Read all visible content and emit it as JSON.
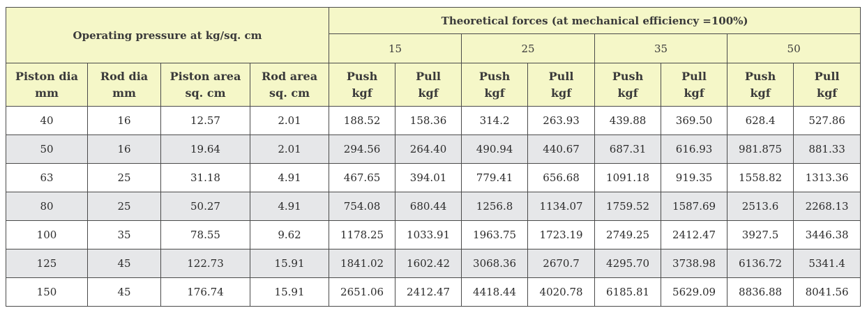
{
  "table": {
    "group_header": "Operating pressure at kg/sq. cm",
    "forces_header": "Theoretical forces (at mechanical efficiency =100%)",
    "pressures": [
      "15",
      "25",
      "35",
      "50"
    ],
    "columns": [
      [
        "Piston dia",
        "mm"
      ],
      [
        "Rod dia",
        "mm"
      ],
      [
        "Piston area",
        "sq. cm"
      ],
      [
        "Rod area",
        "sq. cm"
      ],
      [
        "Push",
        "kgf"
      ],
      [
        "Pull",
        "kgf"
      ],
      [
        "Push",
        "kgf"
      ],
      [
        "Pull",
        "kgf"
      ],
      [
        "Push",
        "kgf"
      ],
      [
        "Pull",
        "kgf"
      ],
      [
        "Push",
        "kgf"
      ],
      [
        "Pull",
        "kgf"
      ]
    ],
    "rows": [
      [
        "40",
        "16",
        "12.57",
        "2.01",
        "188.52",
        "158.36",
        "314.2",
        "263.93",
        "439.88",
        "369.50",
        "628.4",
        "527.86"
      ],
      [
        "50",
        "16",
        "19.64",
        "2.01",
        "294.56",
        "264.40",
        "490.94",
        "440.67",
        "687.31",
        "616.93",
        "981.875",
        "881.33"
      ],
      [
        "63",
        "25",
        "31.18",
        "4.91",
        "467.65",
        "394.01",
        "779.41",
        "656.68",
        "1091.18",
        "919.35",
        "1558.82",
        "1313.36"
      ],
      [
        "80",
        "25",
        "50.27",
        "4.91",
        "754.08",
        "680.44",
        "1256.8",
        "1134.07",
        "1759.52",
        "1587.69",
        "2513.6",
        "2268.13"
      ],
      [
        "100",
        "35",
        "78.55",
        "9.62",
        "1178.25",
        "1033.91",
        "1963.75",
        "1723.19",
        "2749.25",
        "2412.47",
        "3927.5",
        "3446.38"
      ],
      [
        "125",
        "45",
        "122.73",
        "15.91",
        "1841.02",
        "1602.42",
        "3068.36",
        "2670.7",
        "4295.70",
        "3738.98",
        "6136.72",
        "5341.4"
      ],
      [
        "150",
        "45",
        "176.74",
        "15.91",
        "2651.06",
        "2412.47",
        "4418.44",
        "4020.78",
        "6185.81",
        "5629.09",
        "8836.88",
        "8041.56"
      ]
    ]
  }
}
